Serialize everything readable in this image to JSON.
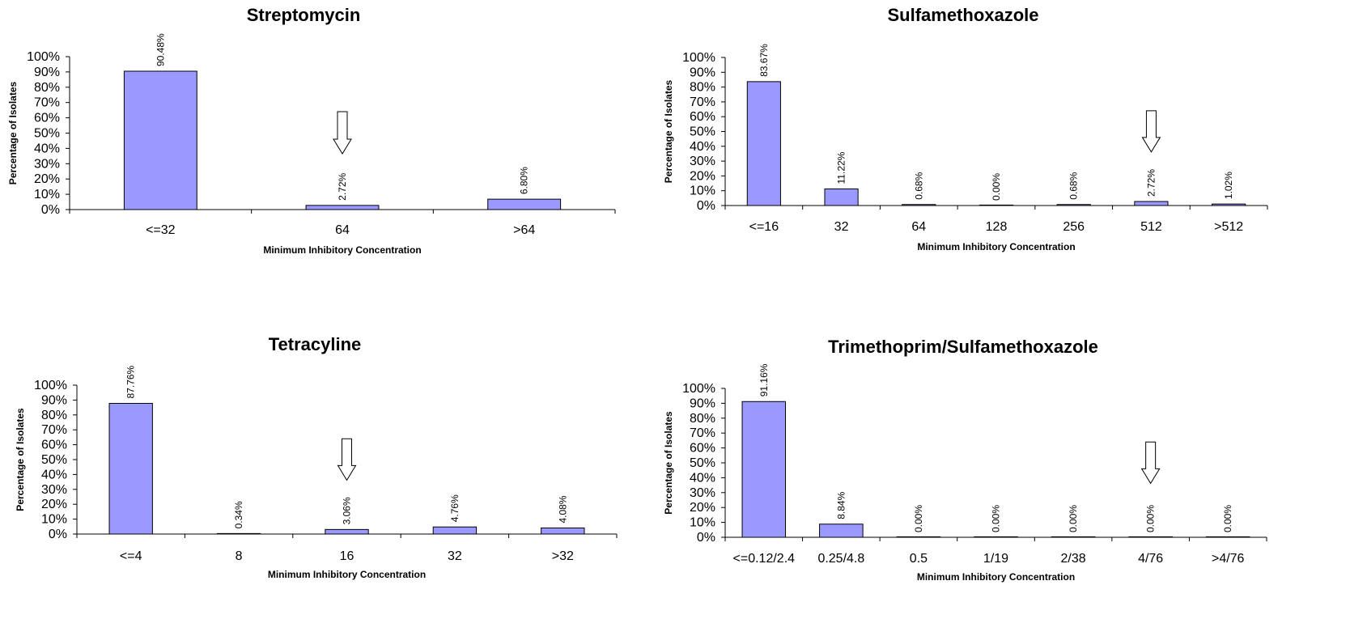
{
  "chart_data": [
    {
      "type": "bar",
      "title": "Streptomycin",
      "xlabel": "Minimum Inhibitory Concentration",
      "ylabel": "Percentage of Isolates",
      "ylim": [
        0,
        100
      ],
      "yticks": [
        "0%",
        "10%",
        "20%",
        "30%",
        "40%",
        "50%",
        "60%",
        "70%",
        "80%",
        "90%",
        "100%"
      ],
      "categories": [
        "<=32",
        "64",
        ">64"
      ],
      "values": [
        90.48,
        2.72,
        6.8
      ],
      "data_labels": [
        "90.48%",
        "2.72%",
        "6.80%"
      ],
      "breakpoint_arrow_category": "64",
      "grid": false,
      "legend": "none"
    },
    {
      "type": "bar",
      "title": "Sulfamethoxazole",
      "xlabel": "Minimum Inhibitory Concentration",
      "ylabel": "Percentage of Isolates",
      "ylim": [
        0,
        100
      ],
      "yticks": [
        "0%",
        "10%",
        "20%",
        "30%",
        "40%",
        "50%",
        "60%",
        "70%",
        "80%",
        "90%",
        "100%"
      ],
      "categories": [
        "<=16",
        "32",
        "64",
        "128",
        "256",
        "512",
        ">512"
      ],
      "values": [
        83.67,
        11.22,
        0.68,
        0.0,
        0.68,
        2.72,
        1.02
      ],
      "data_labels": [
        "83.67%",
        "11.22%",
        "0.68%",
        "0.00%",
        "0.68%",
        "2.72%",
        "1.02%"
      ],
      "breakpoint_arrow_category": "512",
      "grid": false,
      "legend": "none"
    },
    {
      "type": "bar",
      "title": "Tetracyline",
      "xlabel": "Minimum Inhibitory Concentration",
      "ylabel": "Percentage of Isolates",
      "ylim": [
        0,
        100
      ],
      "yticks": [
        "0%",
        "10%",
        "20%",
        "30%",
        "40%",
        "50%",
        "60%",
        "70%",
        "80%",
        "90%",
        "100%"
      ],
      "categories": [
        "<=4",
        "8",
        "16",
        "32",
        ">32"
      ],
      "values": [
        87.76,
        0.34,
        3.06,
        4.76,
        4.08
      ],
      "data_labels": [
        "87.76%",
        "0.34%",
        "3.06%",
        "4.76%",
        "4.08%"
      ],
      "breakpoint_arrow_category": "16",
      "grid": false,
      "legend": "none"
    },
    {
      "type": "bar",
      "title": "Trimethoprim/Sulfamethoxazole",
      "xlabel": "Minimum Inhibitory Concentration",
      "ylabel": "Percentage of Isolates",
      "ylim": [
        0,
        100
      ],
      "yticks": [
        "0%",
        "10%",
        "20%",
        "30%",
        "40%",
        "50%",
        "60%",
        "70%",
        "80%",
        "90%",
        "100%"
      ],
      "categories": [
        "<=0.12/2.4",
        "0.25/4.8",
        "0.5",
        "1/19",
        "2/38",
        "4/76",
        ">4/76"
      ],
      "values": [
        91.16,
        8.84,
        0.0,
        0.0,
        0.0,
        0.0,
        0.0
      ],
      "data_labels": [
        "91.16%",
        "8.84%",
        "0.00%",
        "0.00%",
        "0.00%",
        "0.00%",
        "0.00%"
      ],
      "breakpoint_arrow_category": "4/76",
      "grid": false,
      "legend": "none"
    }
  ],
  "colors": {
    "bar_fill": "#9999ff",
    "bar_stroke": "#000000",
    "arrow_fill": "#ffffff"
  }
}
